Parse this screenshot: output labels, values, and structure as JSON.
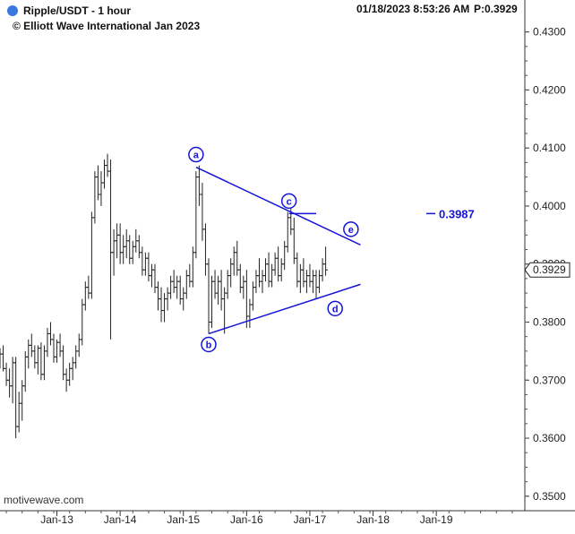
{
  "header": {
    "symbol_title": "Ripple/USDT - 1 hour",
    "copyright": "© Elliott Wave International Jan 2023",
    "timestamp": "01/18/2023 8:53:26 AM",
    "price_readout": "P:0.3929",
    "indicator_color": "#3a78e0"
  },
  "watermark": "motivewave.com",
  "chart_data": {
    "type": "ohlc",
    "title": "Ripple/USDT - 1 hour",
    "ylim": [
      0.3475,
      0.4355
    ],
    "y_ticks": [
      0.35,
      0.36,
      0.37,
      0.38,
      0.39,
      0.4,
      0.41,
      0.42,
      0.43
    ],
    "y_tick_labels": [
      "0.3500",
      "0.3600",
      "0.3700",
      "0.3800",
      "0.3900",
      "0.4000",
      "0.4100",
      "0.4200",
      "0.4300"
    ],
    "x_ticks": [
      "Jan-13",
      "Jan-14",
      "Jan-15",
      "Jan-16",
      "Jan-17",
      "Jan-18",
      "Jan-19"
    ],
    "x_range": [
      12.1,
      20.4
    ],
    "last_price_label": "0.3929",
    "series_color": "#222222",
    "annotation_color": "#1515d8",
    "bars": [
      [
        12.1,
        0.374,
        0.3755,
        0.372,
        0.3745
      ],
      [
        12.15,
        0.3745,
        0.376,
        0.3715,
        0.372
      ],
      [
        12.2,
        0.372,
        0.373,
        0.369,
        0.37
      ],
      [
        12.25,
        0.37,
        0.372,
        0.367,
        0.369
      ],
      [
        12.3,
        0.369,
        0.374,
        0.366,
        0.373
      ],
      [
        12.35,
        0.373,
        0.374,
        0.36,
        0.362
      ],
      [
        12.4,
        0.362,
        0.368,
        0.361,
        0.366
      ],
      [
        12.45,
        0.366,
        0.37,
        0.363,
        0.369
      ],
      [
        12.5,
        0.369,
        0.375,
        0.368,
        0.374
      ],
      [
        12.55,
        0.374,
        0.377,
        0.372,
        0.376
      ],
      [
        12.6,
        0.376,
        0.378,
        0.374,
        0.375
      ],
      [
        12.65,
        0.375,
        0.376,
        0.372,
        0.373
      ],
      [
        12.7,
        0.373,
        0.376,
        0.371,
        0.3755
      ],
      [
        12.75,
        0.3755,
        0.3765,
        0.37,
        0.371
      ],
      [
        12.8,
        0.371,
        0.376,
        0.37,
        0.375
      ],
      [
        12.85,
        0.375,
        0.379,
        0.374,
        0.378
      ],
      [
        12.9,
        0.378,
        0.38,
        0.376,
        0.377
      ],
      [
        12.95,
        0.377,
        0.378,
        0.373,
        0.374
      ],
      [
        13.0,
        0.374,
        0.377,
        0.373,
        0.3765
      ],
      [
        13.05,
        0.3765,
        0.378,
        0.374,
        0.375
      ],
      [
        13.1,
        0.375,
        0.376,
        0.37,
        0.371
      ],
      [
        13.15,
        0.371,
        0.372,
        0.368,
        0.37
      ],
      [
        13.2,
        0.37,
        0.373,
        0.369,
        0.372
      ],
      [
        13.25,
        0.372,
        0.374,
        0.37,
        0.373
      ],
      [
        13.3,
        0.373,
        0.376,
        0.372,
        0.375
      ],
      [
        13.35,
        0.375,
        0.378,
        0.374,
        0.377
      ],
      [
        13.4,
        0.377,
        0.384,
        0.376,
        0.383
      ],
      [
        13.45,
        0.383,
        0.387,
        0.382,
        0.386
      ],
      [
        13.5,
        0.386,
        0.388,
        0.384,
        0.385
      ],
      [
        13.55,
        0.385,
        0.399,
        0.384,
        0.398
      ],
      [
        13.6,
        0.398,
        0.406,
        0.397,
        0.405
      ],
      [
        13.65,
        0.405,
        0.407,
        0.401,
        0.402
      ],
      [
        13.7,
        0.402,
        0.406,
        0.4,
        0.404
      ],
      [
        13.75,
        0.404,
        0.408,
        0.403,
        0.407
      ],
      [
        13.8,
        0.407,
        0.409,
        0.405,
        0.406
      ],
      [
        13.85,
        0.406,
        0.408,
        0.377,
        0.392
      ],
      [
        13.9,
        0.392,
        0.396,
        0.388,
        0.394
      ],
      [
        13.95,
        0.394,
        0.397,
        0.391,
        0.395
      ],
      [
        14.0,
        0.395,
        0.397,
        0.39,
        0.392
      ],
      [
        14.05,
        0.392,
        0.395,
        0.39,
        0.393
      ],
      [
        14.1,
        0.393,
        0.396,
        0.391,
        0.394
      ],
      [
        14.15,
        0.394,
        0.395,
        0.39,
        0.391
      ],
      [
        14.2,
        0.391,
        0.394,
        0.39,
        0.393
      ],
      [
        14.25,
        0.393,
        0.396,
        0.392,
        0.394
      ],
      [
        14.3,
        0.394,
        0.395,
        0.391,
        0.392
      ],
      [
        14.35,
        0.392,
        0.393,
        0.388,
        0.389
      ],
      [
        14.4,
        0.389,
        0.392,
        0.388,
        0.391
      ],
      [
        14.45,
        0.391,
        0.392,
        0.387,
        0.388
      ],
      [
        14.5,
        0.388,
        0.39,
        0.386,
        0.389
      ],
      [
        14.55,
        0.389,
        0.39,
        0.385,
        0.386
      ],
      [
        14.6,
        0.386,
        0.387,
        0.382,
        0.384
      ],
      [
        14.65,
        0.384,
        0.386,
        0.38,
        0.382
      ],
      [
        14.7,
        0.382,
        0.385,
        0.38,
        0.384
      ],
      [
        14.75,
        0.384,
        0.386,
        0.382,
        0.385
      ],
      [
        14.8,
        0.385,
        0.388,
        0.384,
        0.387
      ],
      [
        14.85,
        0.387,
        0.389,
        0.385,
        0.386
      ],
      [
        14.9,
        0.386,
        0.388,
        0.384,
        0.387
      ],
      [
        14.95,
        0.387,
        0.388,
        0.383,
        0.384
      ],
      [
        15.0,
        0.384,
        0.386,
        0.382,
        0.385
      ],
      [
        15.05,
        0.385,
        0.389,
        0.384,
        0.388
      ],
      [
        15.1,
        0.388,
        0.39,
        0.386,
        0.387
      ],
      [
        15.15,
        0.387,
        0.393,
        0.386,
        0.392
      ],
      [
        15.2,
        0.392,
        0.406,
        0.391,
        0.405
      ],
      [
        15.25,
        0.405,
        0.407,
        0.4,
        0.402
      ],
      [
        15.3,
        0.402,
        0.404,
        0.394,
        0.396
      ],
      [
        15.35,
        0.396,
        0.397,
        0.388,
        0.39
      ],
      [
        15.4,
        0.39,
        0.391,
        0.378,
        0.38
      ],
      [
        15.45,
        0.38,
        0.388,
        0.379,
        0.387
      ],
      [
        15.5,
        0.387,
        0.389,
        0.384,
        0.385
      ],
      [
        15.55,
        0.385,
        0.388,
        0.383,
        0.387
      ],
      [
        15.6,
        0.387,
        0.389,
        0.382,
        0.384
      ],
      [
        15.65,
        0.384,
        0.386,
        0.378,
        0.385
      ],
      [
        15.7,
        0.385,
        0.389,
        0.384,
        0.388
      ],
      [
        15.75,
        0.388,
        0.391,
        0.386,
        0.39
      ],
      [
        15.8,
        0.39,
        0.393,
        0.388,
        0.392
      ],
      [
        15.85,
        0.392,
        0.394,
        0.388,
        0.389
      ],
      [
        15.9,
        0.389,
        0.39,
        0.385,
        0.386
      ],
      [
        15.95,
        0.386,
        0.388,
        0.384,
        0.387
      ],
      [
        16.0,
        0.387,
        0.389,
        0.379,
        0.381
      ],
      [
        16.05,
        0.381,
        0.384,
        0.379,
        0.383
      ],
      [
        16.1,
        0.383,
        0.387,
        0.382,
        0.386
      ],
      [
        16.15,
        0.386,
        0.389,
        0.385,
        0.388
      ],
      [
        16.2,
        0.388,
        0.391,
        0.386,
        0.387
      ],
      [
        16.25,
        0.387,
        0.389,
        0.385,
        0.388
      ],
      [
        16.3,
        0.388,
        0.391,
        0.387,
        0.39
      ],
      [
        16.35,
        0.39,
        0.392,
        0.386,
        0.387
      ],
      [
        16.4,
        0.387,
        0.39,
        0.386,
        0.389
      ],
      [
        16.45,
        0.389,
        0.392,
        0.388,
        0.391
      ],
      [
        16.5,
        0.391,
        0.393,
        0.387,
        0.388
      ],
      [
        16.55,
        0.388,
        0.391,
        0.387,
        0.39
      ],
      [
        16.6,
        0.39,
        0.394,
        0.389,
        0.393
      ],
      [
        16.65,
        0.393,
        0.399,
        0.392,
        0.398
      ],
      [
        16.7,
        0.398,
        0.4,
        0.395,
        0.396
      ],
      [
        16.75,
        0.396,
        0.398,
        0.39,
        0.391
      ],
      [
        16.8,
        0.391,
        0.392,
        0.386,
        0.387
      ],
      [
        16.85,
        0.387,
        0.39,
        0.385,
        0.389
      ],
      [
        16.9,
        0.389,
        0.391,
        0.386,
        0.387
      ],
      [
        16.95,
        0.387,
        0.389,
        0.385,
        0.388
      ],
      [
        17.0,
        0.388,
        0.39,
        0.386,
        0.387
      ],
      [
        17.05,
        0.387,
        0.389,
        0.385,
        0.388
      ],
      [
        17.1,
        0.388,
        0.389,
        0.384,
        0.386
      ],
      [
        17.15,
        0.386,
        0.389,
        0.385,
        0.388
      ],
      [
        17.2,
        0.388,
        0.391,
        0.387,
        0.39
      ],
      [
        17.25,
        0.39,
        0.393,
        0.388,
        0.389
      ]
    ],
    "annotations": [
      {
        "label": "a",
        "value": 0.4067
      },
      {
        "label": "b",
        "value": 0.378
      },
      {
        "label": "c",
        "value": 0.3987
      },
      {
        "label": "d",
        "value": 0.3845
      },
      {
        "label": "e",
        "value": 0.396
      },
      {
        "label": "0.3987",
        "value": 0.3987
      }
    ],
    "trendlines": [
      {
        "name": "upper",
        "points": [
          [
            15.2,
            0.4067
          ],
          [
            17.8,
            0.3933
          ]
        ]
      },
      {
        "name": "lower",
        "points": [
          [
            15.4,
            0.378
          ],
          [
            17.8,
            0.3865
          ]
        ]
      },
      {
        "name": "c-level",
        "points": [
          [
            16.67,
            0.3987
          ],
          [
            17.1,
            0.3987
          ]
        ]
      }
    ]
  }
}
